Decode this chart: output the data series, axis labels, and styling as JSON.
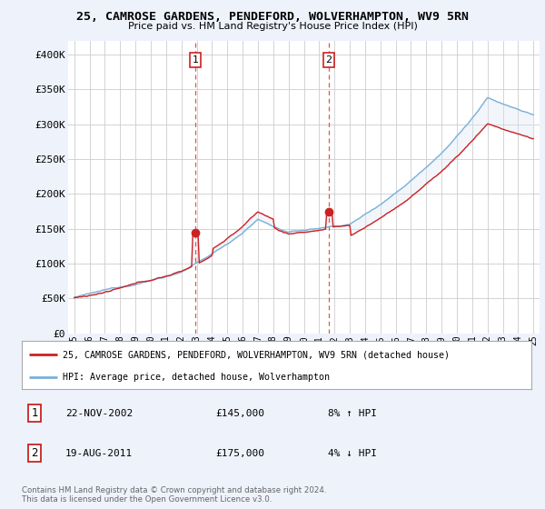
{
  "title": "25, CAMROSE GARDENS, PENDEFORD, WOLVERHAMPTON, WV9 5RN",
  "subtitle": "Price paid vs. HM Land Registry's House Price Index (HPI)",
  "bg_color": "#eef2fb",
  "plot_bg_color": "#ffffff",
  "shaded_color": "#dce8f5",
  "legend_line1": "25, CAMROSE GARDENS, PENDEFORD, WOLVERHAMPTON, WV9 5RN (detached house)",
  "legend_line2": "HPI: Average price, detached house, Wolverhampton",
  "footnote": "Contains HM Land Registry data © Crown copyright and database right 2024.\nThis data is licensed under the Open Government Licence v3.0.",
  "hpi_color": "#7ab0d8",
  "price_color": "#cc2222",
  "dashed_line_color": "#dd5555",
  "ylim": [
    0,
    420000
  ],
  "yticks": [
    0,
    50000,
    100000,
    150000,
    200000,
    250000,
    300000,
    350000,
    400000
  ],
  "ytick_labels": [
    "£0",
    "£50K",
    "£100K",
    "£150K",
    "£200K",
    "£250K",
    "£300K",
    "£350K",
    "£400K"
  ],
  "t1_year": 2002.917,
  "t1_price": 145000,
  "t2_year": 2011.625,
  "t2_price": 175000
}
